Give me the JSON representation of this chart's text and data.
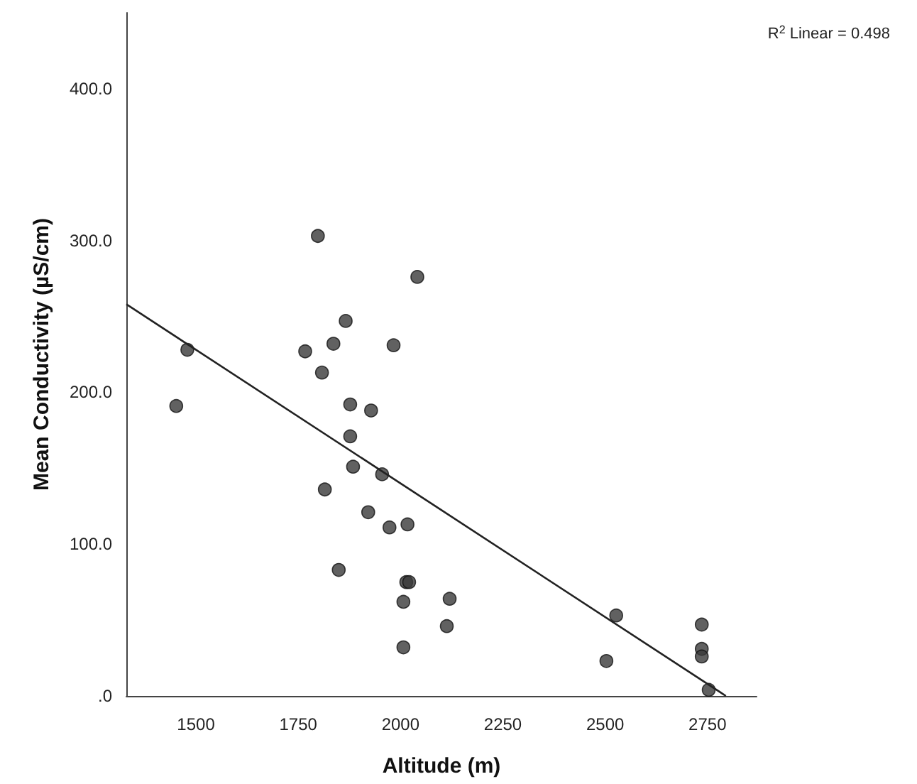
{
  "chart_data": {
    "type": "scatter",
    "xlabel": "Altitude (m)",
    "ylabel": "Mean Conductivity (µS/cm)",
    "annotations": [
      "R$^{2}$ Linear = 0.498"
    ],
    "xlim": [
      1330,
      2870
    ],
    "xticks": [
      1500,
      1750,
      2000,
      2250,
      2500,
      2750
    ],
    "ylim": [
      0,
      450
    ],
    "yticks": [
      {
        "value": 0,
        "label": ".0"
      },
      {
        "value": 100,
        "label": "100.0"
      },
      {
        "value": 200,
        "label": "200.0"
      },
      {
        "value": 300,
        "label": "300.0"
      },
      {
        "value": 400,
        "label": "400.0"
      }
    ],
    "grid": false,
    "marker": "circle",
    "series": [
      {
        "color": "#3a3a3a",
        "x": [
          1479,
          1452,
          1798,
          2041,
          1866,
          1767,
          1836,
          1983,
          1808,
          1877,
          1928,
          1877,
          1884,
          1955,
          1815,
          1921,
          1973,
          2017,
          1849,
          2014,
          2021,
          2007,
          2120,
          2113,
          2007,
          2527,
          2503,
          2736,
          2736,
          2736,
          2753
        ],
        "values": [
          228,
          191,
          303,
          276,
          247,
          227,
          232,
          231,
          213,
          192,
          188,
          171,
          151,
          146,
          136,
          121,
          111,
          113,
          83,
          75,
          75,
          62,
          64,
          46,
          32,
          53,
          23,
          47,
          31,
          26,
          4
        ]
      },
      {
        "type": "line",
        "color": "#222222",
        "x": [
          1330,
          2795
        ],
        "values": [
          258,
          0
        ],
        "marker": "none",
        "line_style": "solid"
      }
    ]
  }
}
